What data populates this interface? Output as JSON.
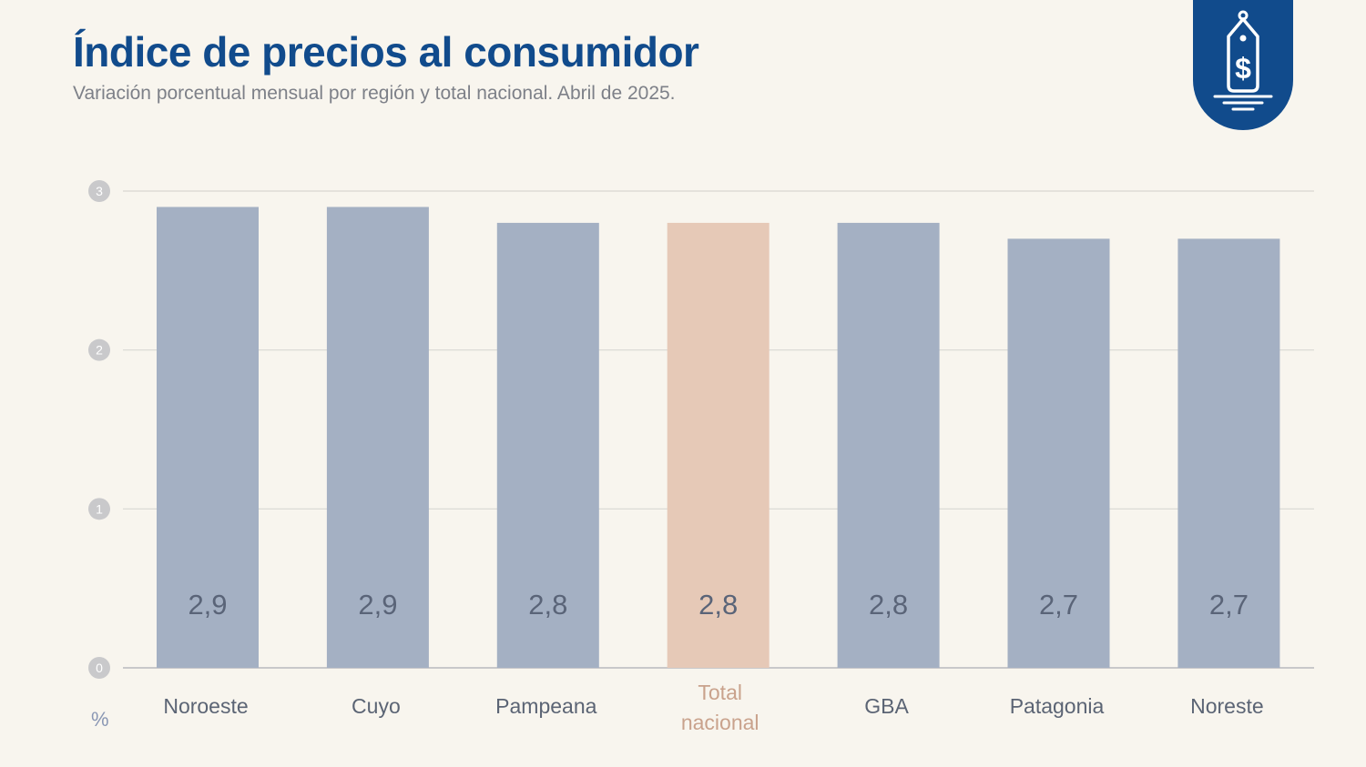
{
  "header": {
    "title": "Índice de precios al consumidor",
    "subtitle": "Variación porcentual mensual por región y total nacional. Abril de 2025."
  },
  "badge_icon": "price-tag-dollar-icon",
  "colors": {
    "brand": "#114b8c",
    "bar": "#a4b0c3",
    "highlight_bar": "#e6c9b7",
    "value_text": "#5a6478",
    "highlight_label": "#c9a28c"
  },
  "chart_data": {
    "type": "bar",
    "title": "Índice de precios al consumidor",
    "subtitle": "Variación porcentual mensual por región y total nacional. Abril de 2025.",
    "unit_label": "%",
    "categories": [
      "Noroeste",
      "Cuyo",
      "Pampeana",
      "Total nacional",
      "GBA",
      "Patagonia",
      "Noreste"
    ],
    "values": [
      2.9,
      2.9,
      2.8,
      2.8,
      2.8,
      2.7,
      2.7
    ],
    "value_labels": [
      "2,9",
      "2,9",
      "2,8",
      "2,8",
      "2,8",
      "2,7",
      "2,7"
    ],
    "highlight_index": 3,
    "ylim": [
      0,
      3
    ],
    "yticks": [
      0,
      1,
      2,
      3
    ],
    "grid": true,
    "legend": "none"
  }
}
